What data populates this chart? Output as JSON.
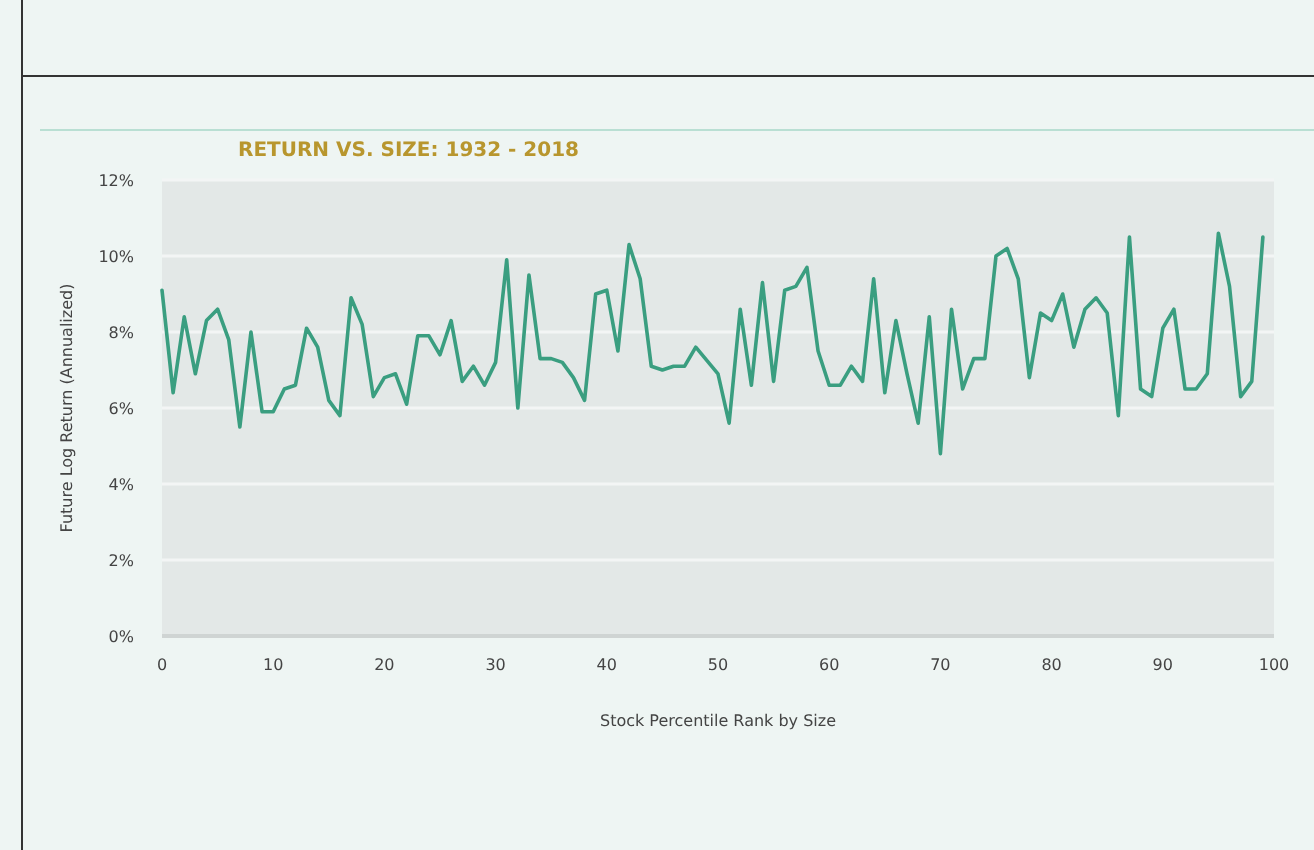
{
  "chart_data": {
    "type": "line",
    "title": "RETURN VS. SIZE: 1932 - 2018",
    "xlabel": "Stock Percentile Rank by Size",
    "ylabel": "Future Log Return (Annualized)",
    "x": [
      0,
      1,
      2,
      3,
      4,
      5,
      6,
      7,
      8,
      9,
      10,
      11,
      12,
      13,
      14,
      15,
      16,
      17,
      18,
      19,
      20,
      21,
      22,
      23,
      24,
      25,
      26,
      27,
      28,
      29,
      30,
      31,
      32,
      33,
      34,
      35,
      36,
      37,
      38,
      39,
      40,
      41,
      42,
      43,
      44,
      45,
      46,
      47,
      48,
      50,
      51,
      52,
      53,
      54,
      55,
      56,
      57,
      58,
      59,
      60,
      61,
      62,
      63,
      64,
      65,
      66,
      67,
      68,
      69,
      70,
      71,
      72,
      73,
      74,
      75,
      76,
      77,
      78,
      79,
      80,
      81,
      82,
      83,
      84,
      85,
      86,
      87,
      88,
      89,
      90,
      91,
      92,
      93,
      94,
      95,
      96,
      97,
      98,
      99
    ],
    "series": [
      {
        "color": "#3a9e80",
        "values": [
          9.1,
          6.4,
          8.4,
          6.9,
          8.3,
          8.6,
          7.8,
          5.5,
          8.0,
          5.9,
          5.9,
          6.5,
          6.6,
          8.1,
          7.6,
          6.2,
          5.8,
          8.9,
          8.2,
          6.3,
          6.8,
          6.9,
          6.1,
          7.9,
          7.9,
          7.4,
          8.3,
          6.7,
          7.1,
          6.6,
          7.2,
          9.9,
          6.0,
          9.5,
          7.3,
          7.3,
          7.2,
          6.8,
          6.2,
          9.0,
          9.1,
          7.5,
          10.3,
          9.4,
          7.1,
          7.0,
          7.1,
          7.1,
          7.6,
          6.9,
          5.6,
          8.6,
          6.6,
          9.3,
          6.7,
          9.1,
          9.2,
          9.7,
          7.5,
          6.6,
          6.6,
          7.1,
          6.7,
          9.4,
          6.4,
          8.3,
          6.9,
          5.6,
          8.4,
          4.8,
          8.6,
          6.5,
          7.3,
          7.3,
          10.0,
          10.2,
          9.4,
          6.8,
          8.5,
          8.3,
          9.0,
          7.6,
          8.6,
          8.9,
          8.5,
          5.8,
          10.5,
          6.5,
          6.3,
          8.1,
          8.6,
          6.5,
          6.5,
          6.9,
          10.6,
          9.2,
          6.3,
          6.7,
          10.5
        ]
      }
    ],
    "xlim": [
      0,
      100
    ],
    "xticks": [
      0,
      10,
      20,
      30,
      40,
      50,
      60,
      70,
      80,
      90,
      100
    ],
    "ylim": [
      0,
      12
    ],
    "yticks": [
      {
        "value": 0,
        "label": "0%"
      },
      {
        "value": 2,
        "label": "2%"
      },
      {
        "value": 4,
        "label": "4%"
      },
      {
        "value": 6,
        "label": "6%"
      },
      {
        "value": 8,
        "label": "8%"
      },
      {
        "value": 10,
        "label": "10%"
      },
      {
        "value": 12,
        "label": "12%"
      }
    ],
    "grid": "y",
    "marker": "none",
    "line_style": "solid"
  }
}
